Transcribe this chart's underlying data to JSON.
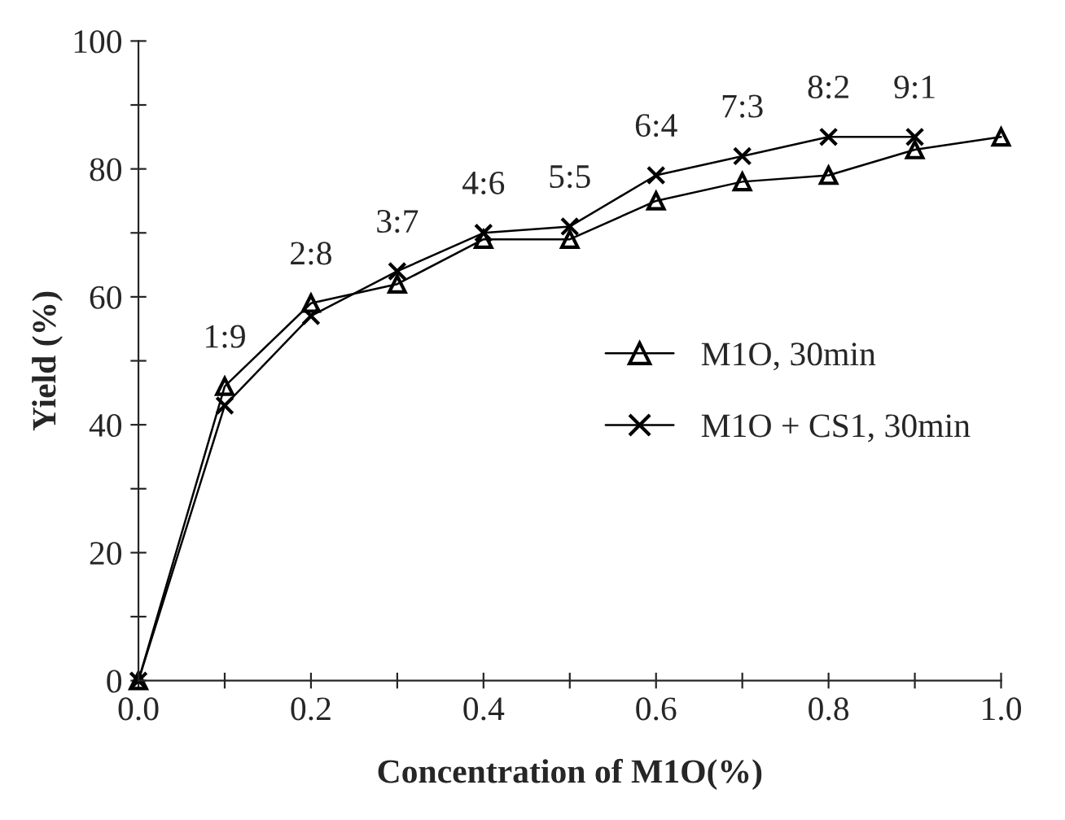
{
  "chart_data": {
    "type": "line",
    "xlabel": "Concentration of M1O(%)",
    "ylabel": "Yield (%)",
    "xlim": [
      0,
      1.0
    ],
    "ylim": [
      0,
      100
    ],
    "xticks": [
      {
        "value": 0,
        "label": "0.0"
      },
      {
        "value": 0.1,
        "label": null
      },
      {
        "value": 0.2,
        "label": "0.2"
      },
      {
        "value": 0.3,
        "label": null
      },
      {
        "value": 0.4,
        "label": "0.4"
      },
      {
        "value": 0.5,
        "label": null
      },
      {
        "value": 0.6,
        "label": "0.6"
      },
      {
        "value": 0.7,
        "label": null
      },
      {
        "value": 0.8,
        "label": "0.8"
      },
      {
        "value": 0.9,
        "label": null
      },
      {
        "value": 1.0,
        "label": "1.0"
      }
    ],
    "yticks": [
      0,
      {
        "value": 10,
        "label": null
      },
      20,
      {
        "value": 30,
        "label": null
      },
      40,
      {
        "value": 50,
        "label": null
      },
      60,
      {
        "value": 70,
        "label": null
      },
      80,
      {
        "value": 90,
        "label": null
      },
      100
    ],
    "grid": false,
    "legend": "right",
    "line_style": "solid",
    "series": [
      {
        "name": "M1O, 30min",
        "color": "#000000",
        "marker": "triangle",
        "x": [
          0,
          0.1,
          0.2,
          0.3,
          0.4,
          0.5,
          0.6,
          0.7,
          0.8,
          0.9,
          1.0
        ],
        "values": [
          0,
          46,
          59,
          62,
          69,
          69,
          75,
          78,
          79,
          83,
          85
        ]
      },
      {
        "name": "M1O + CS1, 30min",
        "color": "#000000",
        "marker": "cross",
        "x": [
          0,
          0.1,
          0.2,
          0.3,
          0.4,
          0.5,
          0.6,
          0.7,
          0.8,
          0.9
        ],
        "values": [
          0,
          43,
          57,
          64,
          70,
          71,
          79,
          82,
          85,
          85
        ]
      }
    ],
    "annotations": [
      {
        "text": "1:9",
        "x": 0.1,
        "y": 46
      },
      {
        "text": "2:8",
        "x": 0.2,
        "y": 59
      },
      {
        "text": "3:7",
        "x": 0.3,
        "y": 64
      },
      {
        "text": "4:6",
        "x": 0.4,
        "y": 70
      },
      {
        "text": "5:5",
        "x": 0.5,
        "y": 71
      },
      {
        "text": "6:4",
        "x": 0.6,
        "y": 79
      },
      {
        "text": "7:3",
        "x": 0.7,
        "y": 82
      },
      {
        "text": "8:2",
        "x": 0.8,
        "y": 85
      },
      {
        "text": "9:1",
        "x": 0.9,
        "y": 85
      }
    ]
  }
}
